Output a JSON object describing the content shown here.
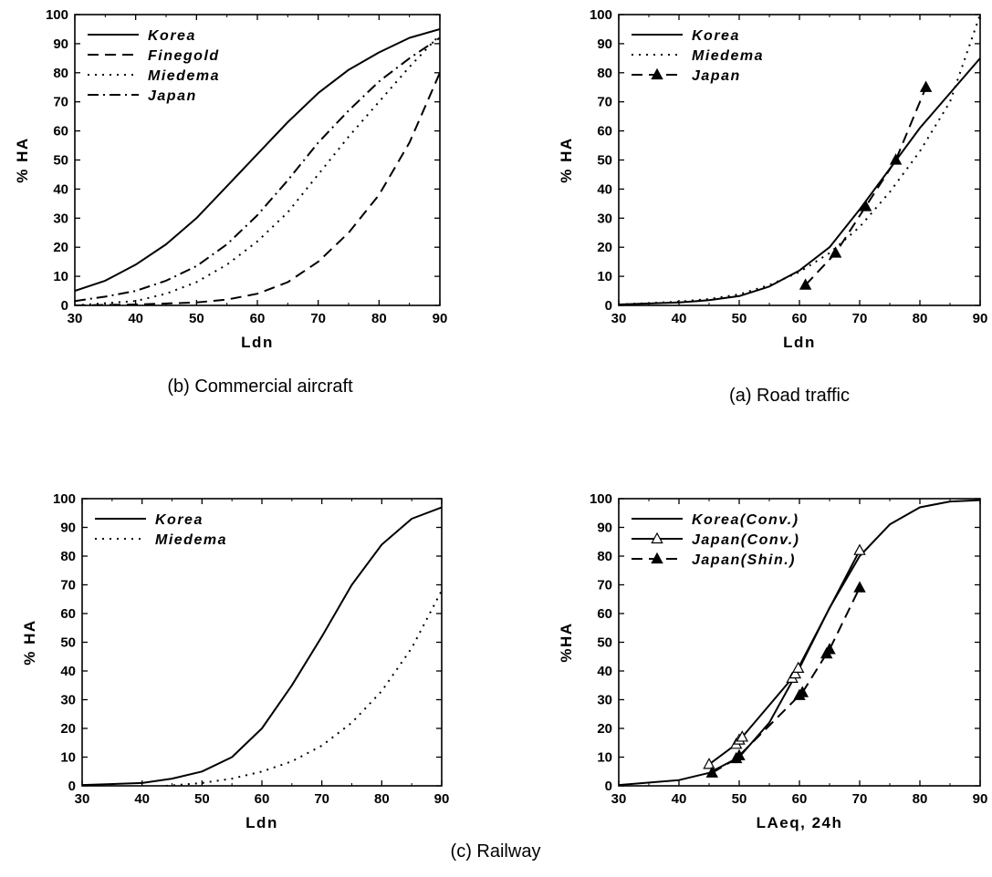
{
  "figure_caption": "(c) Railway",
  "chart_data": [
    {
      "type": "line",
      "caption": "(b) Commercial aircraft",
      "xlabel": "Ldn",
      "ylabel": "% HA",
      "xlim": [
        30,
        90
      ],
      "ylim": [
        0,
        100
      ],
      "xticks": [
        "30",
        "40",
        "50",
        "60",
        "70",
        "80",
        "90"
      ],
      "yticks": [
        "0",
        "10",
        "20",
        "30",
        "40",
        "50",
        "60",
        "70",
        "80",
        "90",
        "100"
      ],
      "legend_position": "top-left",
      "series": [
        {
          "name": "Korea",
          "style": "solid",
          "marker": "none",
          "x": [
            30,
            35,
            40,
            45,
            50,
            55,
            60,
            65,
            70,
            75,
            80,
            85,
            90
          ],
          "y": [
            5,
            8.5,
            14,
            21,
            30,
            41,
            52,
            63,
            73,
            81,
            87,
            92,
            95
          ]
        },
        {
          "name": "Finegold",
          "style": "dashed",
          "marker": "none",
          "x": [
            30,
            40,
            50,
            55,
            60,
            65,
            70,
            75,
            80,
            85,
            90
          ],
          "y": [
            0,
            0.3,
            1,
            2,
            4,
            8,
            15,
            25,
            38,
            56,
            80
          ]
        },
        {
          "name": "Miedema",
          "style": "dotted",
          "marker": "none",
          "x": [
            30,
            40,
            45,
            50,
            55,
            60,
            65,
            70,
            75,
            80,
            85,
            90
          ],
          "y": [
            0,
            1.5,
            4,
            8,
            14,
            22,
            32,
            45,
            58,
            70,
            82,
            93
          ]
        },
        {
          "name": "Japan",
          "style": "dashdot",
          "marker": "none",
          "x": [
            30,
            35,
            40,
            45,
            50,
            55,
            60,
            65,
            70,
            75,
            80,
            85,
            90
          ],
          "y": [
            1.5,
            3,
            5,
            8.5,
            13.5,
            21,
            31,
            43,
            56,
            67,
            77,
            85,
            92
          ]
        }
      ]
    },
    {
      "type": "line",
      "caption": "(a) Road traffic",
      "xlabel": "Ldn",
      "ylabel": "% HA",
      "xlim": [
        30,
        90
      ],
      "ylim": [
        0,
        100
      ],
      "xticks": [
        "30",
        "40",
        "50",
        "60",
        "70",
        "80",
        "90"
      ],
      "yticks": [
        "0",
        "10",
        "20",
        "30",
        "40",
        "50",
        "60",
        "70",
        "80",
        "90",
        "100"
      ],
      "legend_position": "top-left",
      "series": [
        {
          "name": "Korea",
          "style": "solid",
          "marker": "none",
          "x": [
            30,
            40,
            45,
            50,
            55,
            60,
            65,
            70,
            75,
            80,
            85,
            90
          ],
          "y": [
            0.3,
            1,
            1.8,
            3.2,
            6.5,
            12,
            20,
            33,
            47,
            61,
            73,
            85
          ]
        },
        {
          "name": "Miedema",
          "style": "dotted",
          "marker": "none",
          "x": [
            30,
            40,
            45,
            50,
            55,
            60,
            65,
            70,
            75,
            80,
            85,
            90
          ],
          "y": [
            0.3,
            1.3,
            2.2,
            3.8,
            7,
            11.5,
            18,
            27,
            39,
            53,
            70,
            100
          ]
        },
        {
          "name": "Japan",
          "style": "dashed",
          "marker": "filled-triangle",
          "x": [
            61,
            66,
            71,
            76,
            81
          ],
          "y": [
            7,
            18,
            34,
            50,
            75
          ]
        }
      ]
    },
    {
      "type": "line",
      "caption": "",
      "xlabel": "Ldn",
      "ylabel": "% HA",
      "xlim": [
        30,
        90
      ],
      "ylim": [
        0,
        100
      ],
      "xticks": [
        "30",
        "40",
        "50",
        "60",
        "70",
        "80",
        "90"
      ],
      "yticks": [
        "0",
        "10",
        "20",
        "30",
        "40",
        "50",
        "60",
        "70",
        "80",
        "90",
        "100"
      ],
      "legend_position": "top-left",
      "series": [
        {
          "name": "Korea",
          "style": "solid",
          "marker": "none",
          "x": [
            30,
            40,
            45,
            50,
            55,
            60,
            65,
            70,
            75,
            80,
            85,
            90
          ],
          "y": [
            0.3,
            1,
            2.5,
            5,
            10,
            20,
            35,
            52,
            70,
            84,
            93,
            97
          ]
        },
        {
          "name": "Miedema",
          "style": "dotted",
          "marker": "none",
          "x": [
            44,
            50,
            55,
            60,
            65,
            70,
            75,
            80,
            85,
            90
          ],
          "y": [
            0,
            1,
            2.5,
            5,
            8.5,
            14,
            22,
            33,
            48,
            68
          ]
        }
      ]
    },
    {
      "type": "line",
      "caption": "",
      "xlabel": "LAeq, 24h",
      "ylabel": "%HA",
      "xlim": [
        30,
        90
      ],
      "ylim": [
        0,
        100
      ],
      "xticks": [
        "30",
        "40",
        "50",
        "60",
        "70",
        "80",
        "90"
      ],
      "yticks": [
        "0",
        "10",
        "20",
        "30",
        "40",
        "50",
        "60",
        "70",
        "80",
        "90",
        "100"
      ],
      "legend_position": "top-left",
      "series": [
        {
          "name": "Korea(Conv.)",
          "style": "solid",
          "marker": "none",
          "x": [
            30,
            40,
            45,
            50,
            55,
            60,
            65,
            70,
            75,
            80,
            85,
            90
          ],
          "y": [
            0.3,
            2,
            4.5,
            10,
            22,
            41,
            62,
            80,
            91,
            97,
            99,
            99.5
          ]
        },
        {
          "name": "Japan(Conv.)",
          "style": "solid",
          "marker": "open-triangle",
          "x": [
            45,
            49.5,
            50,
            50.5,
            58.8,
            59.3,
            59.8,
            70
          ],
          "y": [
            7.5,
            14.5,
            16,
            17,
            37.5,
            39,
            41,
            82
          ]
        },
        {
          "name": "Japan(Shin.)",
          "style": "dashed",
          "marker": "filled-triangle",
          "x": [
            45.5,
            49.5,
            50,
            60,
            60.5,
            64.5,
            65,
            70
          ],
          "y": [
            4.5,
            9.5,
            10.5,
            31.5,
            32.5,
            46,
            47.5,
            69
          ]
        }
      ]
    }
  ]
}
